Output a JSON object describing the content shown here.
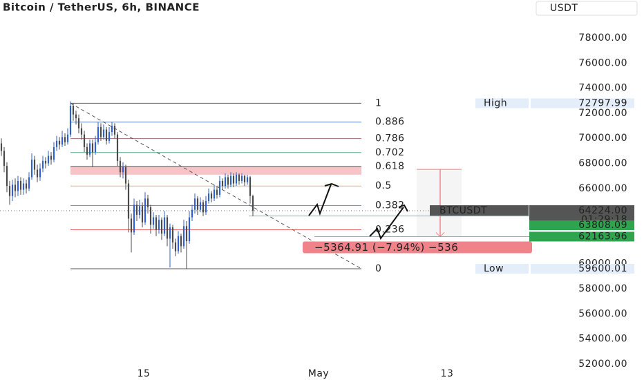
{
  "header": {
    "title": "Bitcoin / TetherUS, 6h, BINANCE",
    "currency": "USDT"
  },
  "chart_data": {
    "type": "candlestick",
    "up_color": "#2f5fd0",
    "down_color": "#4a4a4a",
    "x": [
      0,
      1,
      2,
      3,
      4,
      5,
      6,
      7,
      8,
      9,
      10,
      11,
      12,
      13,
      14,
      15,
      16,
      17,
      18,
      19,
      20,
      21,
      22,
      23,
      24,
      25,
      26,
      27,
      28,
      29,
      30,
      31,
      32,
      33,
      34,
      35,
      36,
      37,
      38,
      39,
      40,
      41,
      42,
      43,
      44,
      45,
      46,
      47,
      48,
      49,
      50,
      51,
      52,
      53,
      54,
      55,
      56,
      57,
      58,
      59,
      60,
      61,
      62,
      63,
      64,
      65,
      66,
      67,
      68,
      69,
      70,
      71,
      72,
      73,
      74,
      75,
      76,
      77,
      78,
      79,
      80,
      81,
      82,
      83,
      84,
      85,
      86,
      87,
      88,
      89,
      90,
      91
    ],
    "open": [
      69600,
      69000,
      67800,
      66200,
      65400,
      66300,
      65800,
      66600,
      65900,
      66400,
      66000,
      66900,
      68300,
      67500,
      66900,
      67600,
      68200,
      68000,
      68600,
      68300,
      69300,
      69800,
      69500,
      70100,
      69700,
      70300,
      72600,
      71900,
      71600,
      70800,
      70300,
      69300,
      68700,
      69600,
      68900,
      69700,
      70900,
      70100,
      70700,
      69800,
      70500,
      71000,
      70300,
      68200,
      67300,
      67700,
      66400,
      63600,
      62500,
      64700,
      63900,
      64600,
      63300,
      65200,
      64500,
      63100,
      63700,
      62700,
      63500,
      62400,
      63700,
      62000,
      62900,
      61700,
      61000,
      62200,
      61400,
      63000,
      61800,
      63700,
      64300,
      65200,
      64300,
      64900,
      64100,
      65000,
      65600,
      65200,
      65900,
      65500,
      66600,
      66200,
      66900,
      66300,
      67000,
      66400,
      67100,
      66600,
      67000,
      66500,
      66900,
      65400
    ],
    "high": [
      70000,
      69300,
      68100,
      66600,
      66700,
      66800,
      67000,
      66900,
      66800,
      66700,
      67300,
      68800,
      68600,
      67900,
      68000,
      68600,
      68500,
      69000,
      68900,
      69700,
      70200,
      70100,
      70600,
      70400,
      70800,
      72950,
      72800,
      72200,
      71900,
      71200,
      70600,
      69600,
      69900,
      69900,
      70200,
      71300,
      71200,
      71100,
      70900,
      70900,
      71300,
      71200,
      70500,
      68500,
      68100,
      67900,
      66700,
      64000,
      65200,
      65000,
      65100,
      64900,
      65700,
      65500,
      64700,
      64100,
      63900,
      63900,
      63700,
      64200,
      63900,
      63200,
      63100,
      62000,
      62600,
      62400,
      63500,
      63400,
      64200,
      64700,
      65600,
      65400,
      65300,
      65100,
      65400,
      66000,
      65800,
      66300,
      66100,
      67000,
      66800,
      67200,
      67100,
      67300,
      67200,
      67300,
      67200,
      67200,
      67100,
      67100,
      67000,
      65500
    ],
    "low": [
      68600,
      67300,
      65700,
      64700,
      65000,
      65300,
      65400,
      65500,
      65500,
      65600,
      65800,
      66700,
      67100,
      66500,
      66600,
      67300,
      67600,
      67800,
      67900,
      68100,
      69000,
      69100,
      69300,
      69400,
      69500,
      70100,
      71400,
      71100,
      70400,
      69900,
      68900,
      68300,
      68500,
      67700,
      68700,
      69500,
      69800,
      69900,
      69500,
      69600,
      70200,
      70000,
      67800,
      66900,
      66800,
      65900,
      62500,
      60900,
      62300,
      63400,
      63600,
      62900,
      63100,
      64000,
      62400,
      62800,
      62200,
      62400,
      61900,
      62200,
      61400,
      59700,
      61200,
      60600,
      60800,
      60900,
      61200,
      59600,
      61600,
      63400,
      64000,
      63900,
      64100,
      63800,
      63900,
      64800,
      64900,
      65000,
      65200,
      65300,
      65900,
      66000,
      66000,
      66100,
      66100,
      66200,
      66300,
      66400,
      66200,
      66300,
      64800,
      63800
    ],
    "close": [
      69000,
      67800,
      66200,
      65400,
      66300,
      65800,
      66600,
      65900,
      66400,
      66000,
      66900,
      68300,
      67500,
      66900,
      67600,
      68200,
      68000,
      68600,
      68300,
      69300,
      69800,
      69500,
      70100,
      69700,
      70300,
      72600,
      71900,
      71600,
      70800,
      70300,
      69300,
      68700,
      69600,
      68900,
      69700,
      70900,
      70100,
      70700,
      69800,
      70500,
      71000,
      70300,
      68200,
      67300,
      67700,
      66400,
      63600,
      62500,
      64700,
      63900,
      64600,
      63300,
      65200,
      64500,
      63100,
      63700,
      62700,
      63500,
      62400,
      63700,
      62000,
      62900,
      61700,
      61000,
      62200,
      61400,
      63000,
      61800,
      63700,
      64300,
      65200,
      64300,
      64900,
      64100,
      65000,
      65600,
      65200,
      65900,
      65500,
      66600,
      66200,
      66900,
      66300,
      67000,
      66400,
      67100,
      66600,
      67000,
      66500,
      66900,
      65400,
      64224
    ],
    "xlim": [
      -0.5,
      192
    ],
    "xticks": [
      {
        "value": 51.5,
        "label": "15"
      },
      {
        "value": 114.75,
        "label": "May"
      },
      {
        "value": 161.25,
        "label": "13"
      }
    ],
    "ylim": [
      51800,
      79800
    ],
    "yticks": [
      {
        "value": 52000,
        "label": "52000.00"
      },
      {
        "value": 54000,
        "label": "54000.00"
      },
      {
        "value": 56000,
        "label": "56000.00"
      },
      {
        "value": 58000,
        "label": "58000.00"
      },
      {
        "value": 60000,
        "label": "60000.00"
      },
      {
        "value": 62000,
        "label": "62000.00"
      },
      {
        "value": 64000,
        "label": "64000.00"
      },
      {
        "value": 66000,
        "label": "66000.00"
      },
      {
        "value": 68000,
        "label": "68000.00"
      },
      {
        "value": 70000,
        "label": "70000.00"
      },
      {
        "value": 72000,
        "label": "72000.00"
      },
      {
        "value": 74000,
        "label": "74000.00"
      },
      {
        "value": 76000,
        "label": "76000.00"
      },
      {
        "value": 78000,
        "label": "78000.00"
      }
    ],
    "fib": {
      "from": 25,
      "to": 130.25,
      "high": 72797.99,
      "low": 59600.01,
      "high_label": "High",
      "low_label": "Low",
      "zone_low": 67100,
      "zone_color": "#f5b8bd",
      "levels": [
        {
          "ratio": 1,
          "color": "#555555"
        },
        {
          "ratio": 0.886,
          "color": "#5b86b8"
        },
        {
          "ratio": 0.786,
          "color": "#a0696e"
        },
        {
          "ratio": 0.702,
          "color": "#4caf8a"
        },
        {
          "ratio": 0.618,
          "color": "#555555"
        },
        {
          "ratio": 0.5,
          "color": "#f4a08a"
        },
        {
          "ratio": 0.382,
          "color": "#6aa3a0"
        },
        {
          "ratio": 0.236,
          "color": "#e86a6a"
        },
        {
          "ratio": 0,
          "color": "#555555"
        }
      ]
    },
    "last_price": {
      "symbol": "BTCUSDT",
      "value": {
        "value": 64224,
        "label": "64224.00"
      },
      "countdown": "01:29:18"
    },
    "price_lines": [
      {
        "value": 63808.09,
        "color": "#2ea44f"
      },
      {
        "value": 62163.96,
        "color": "#2ea44f"
      }
    ],
    "measure": {
      "from": 67528.87,
      "to": 62163.96,
      "label": "−5364.91 (−7.94%) −536",
      "color": "#f0828a"
    }
  }
}
